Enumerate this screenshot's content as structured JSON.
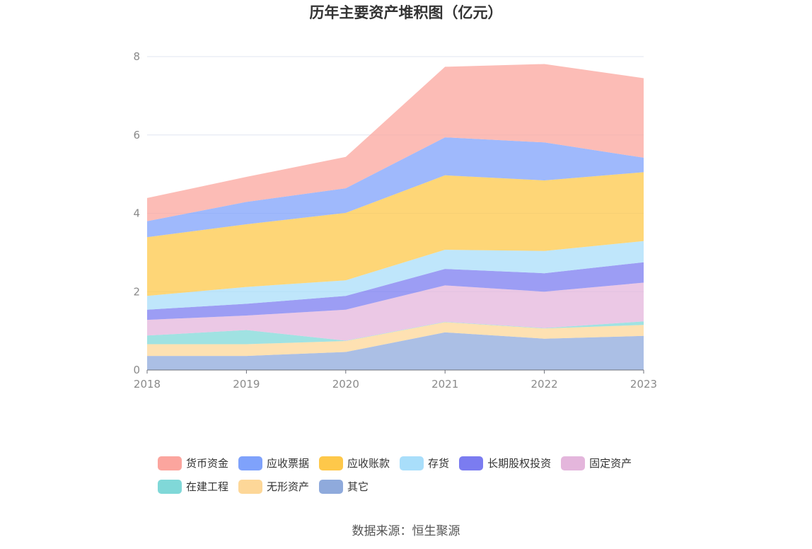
{
  "chart_data": {
    "type": "area",
    "stacked": true,
    "title": "历年主要资产堆积图（亿元）",
    "x": [
      "2018",
      "2019",
      "2020",
      "2021",
      "2022",
      "2023"
    ],
    "ylim": [
      0,
      8
    ],
    "yticks": [
      "0",
      "2",
      "4",
      "6",
      "8"
    ],
    "grid": true,
    "legend_position": "bottom",
    "series": [
      {
        "name": "其它",
        "color": "#8faadc",
        "values": [
          0.36,
          0.36,
          0.46,
          0.96,
          0.8,
          0.87
        ]
      },
      {
        "name": "无形资产",
        "color": "#fdd798",
        "values": [
          0.3,
          0.3,
          0.28,
          0.26,
          0.26,
          0.28
        ]
      },
      {
        "name": "在建工程",
        "color": "#80d8d8",
        "values": [
          0.22,
          0.36,
          0.01,
          0.01,
          0.01,
          0.09
        ]
      },
      {
        "name": "固定资产",
        "color": "#e4b6dc",
        "values": [
          0.4,
          0.37,
          0.79,
          0.93,
          0.93,
          0.99
        ]
      },
      {
        "name": "长期股权投资",
        "color": "#7b7cf0",
        "values": [
          0.26,
          0.3,
          0.35,
          0.42,
          0.47,
          0.52
        ]
      },
      {
        "name": "存货",
        "color": "#a9defa",
        "values": [
          0.35,
          0.43,
          0.4,
          0.49,
          0.57,
          0.54
        ]
      },
      {
        "name": "应收账款",
        "color": "#fec84a",
        "values": [
          1.5,
          1.6,
          1.72,
          1.9,
          1.8,
          1.76
        ]
      },
      {
        "name": "应收票据",
        "color": "#7fa2fb",
        "values": [
          0.41,
          0.57,
          0.63,
          0.97,
          0.97,
          0.37
        ]
      },
      {
        "name": "货币资金",
        "color": "#fba59e",
        "values": [
          0.59,
          0.64,
          0.8,
          1.8,
          2.0,
          2.03
        ]
      }
    ],
    "legend_order": [
      "货币资金",
      "应收票据",
      "应收账款",
      "存货",
      "长期股权投资",
      "固定资产",
      "在建工程",
      "无形资产",
      "其它"
    ]
  },
  "source_note": "数据来源：恒生聚源"
}
